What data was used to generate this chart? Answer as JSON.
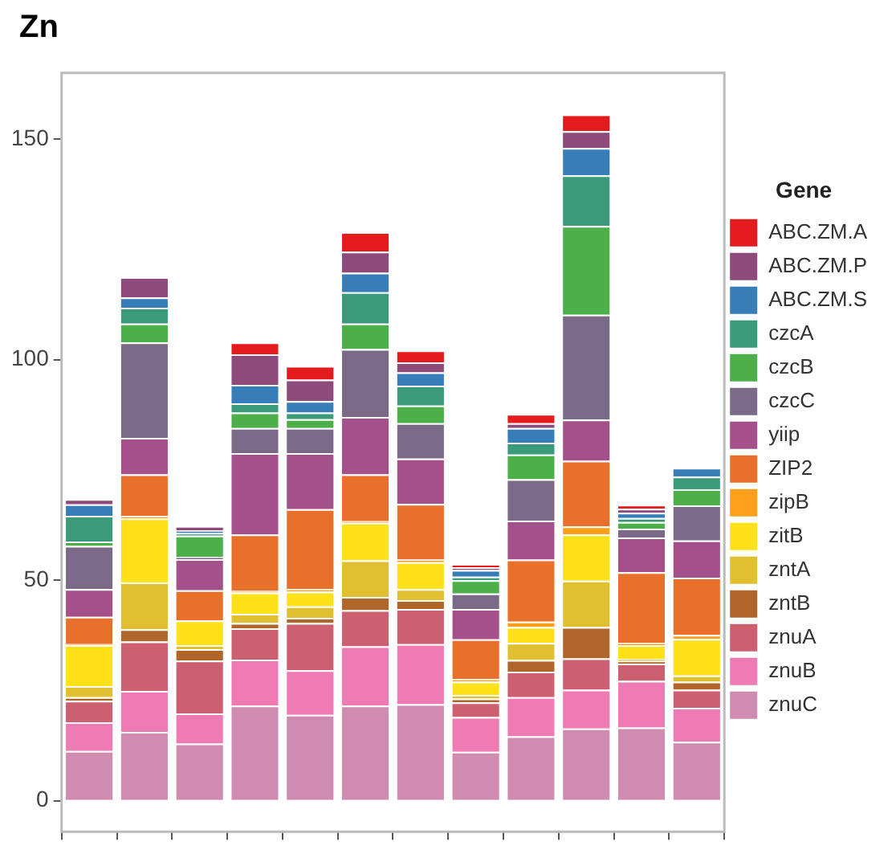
{
  "chart_data": {
    "type": "bar",
    "title": "Zn",
    "legend_title": "Gene",
    "stacked": true,
    "legend": "right",
    "grid": false,
    "tick_labels": "y",
    "categories": [
      null,
      null,
      null,
      null,
      null,
      null,
      null,
      null,
      null,
      null,
      null,
      null
    ],
    "ylim": [
      -7,
      165
    ],
    "yticks": [
      0,
      50,
      100,
      150
    ],
    "series": [
      {
        "name": "znuC",
        "color": "#d08cb0",
        "values": [
          11.3,
          15.6,
          13,
          21.6,
          19.5,
          21.6,
          21.9,
          11.1,
          14.6,
          16.4,
          16.6,
          13.4
        ]
      },
      {
        "name": "znuB",
        "color": "#f07ab4",
        "values": [
          6.5,
          9.3,
          6.8,
          10.4,
          10.1,
          13.4,
          13.6,
          7.9,
          8.9,
          8.8,
          10.6,
          7.7
        ]
      },
      {
        "name": "znuA",
        "color": "#cc6070",
        "values": [
          4.9,
          11.2,
          12,
          7.1,
          10.7,
          8.2,
          8,
          3.3,
          5.8,
          7.1,
          3.9,
          4.1
        ]
      },
      {
        "name": "zntB",
        "color": "#b0652a",
        "values": [
          0.8,
          2.8,
          2.6,
          1.2,
          1.2,
          3,
          2,
          0.9,
          2.6,
          7.1,
          0.6,
          1.8
        ]
      },
      {
        "name": "zntA",
        "color": "#e0c030",
        "values": [
          2.5,
          10.6,
          0.9,
          2.1,
          2.6,
          8.3,
          2.5,
          0.8,
          3.9,
          10.5,
          0.5,
          1.4
        ]
      },
      {
        "name": "zitB",
        "color": "#ffe119",
        "values": [
          9.3,
          14.5,
          5.6,
          4.8,
          3.3,
          8.5,
          6.1,
          3,
          3.6,
          10.5,
          3.1,
          8.3
        ]
      },
      {
        "name": "zipB",
        "color": "#ff9f1a",
        "values": [
          0.2,
          0.6,
          null,
          0.4,
          0.6,
          0.4,
          0.6,
          0.6,
          1.2,
          1.8,
          0.5,
          0.9
        ]
      },
      {
        "name": "ZIP2",
        "color": "#e8702a",
        "values": [
          6.2,
          9.4,
          6.8,
          12.8,
          18.1,
          10.6,
          12.6,
          9,
          14.1,
          14.9,
          16,
          13
        ]
      },
      {
        "name": "yiip",
        "color": "#a4508a",
        "values": [
          6.3,
          8.3,
          7.1,
          18.4,
          12.7,
          13,
          10.3,
          6.9,
          8.8,
          9.3,
          7.9,
          8.4
        ]
      },
      {
        "name": "czcC",
        "color": "#7a6a87",
        "values": [
          9.8,
          21.6,
          0.5,
          5.7,
          5.7,
          15.4,
          8,
          3.5,
          9.4,
          23.8,
          2,
          8
        ]
      },
      {
        "name": "czcB",
        "color": "#4daf4a",
        "values": [
          1,
          4.3,
          4.8,
          3.5,
          2,
          5.8,
          4,
          3,
          5.6,
          20.1,
          1.5,
          3.6
        ]
      },
      {
        "name": "czcA",
        "color": "#3a9a7a",
        "values": [
          5.8,
          3.6,
          0.6,
          2.1,
          1.5,
          7.1,
          4.5,
          0.8,
          2.7,
          11.5,
          0.9,
          2.9
        ]
      },
      {
        "name": "ABC.ZM.S",
        "color": "#377eb8",
        "values": [
          2.6,
          2.3,
          0.6,
          4.2,
          2.6,
          4.4,
          3,
          1.5,
          3.3,
          6.2,
          1.2,
          2
        ]
      },
      {
        "name": "ABC.ZM.P",
        "color": "#8e4a7a",
        "values": [
          1.2,
          4.6,
          1,
          6.9,
          4.9,
          4.8,
          2.3,
          0.6,
          1.1,
          3.8,
          0.9,
          0
        ]
      },
      {
        "name": "ABC.ZM.A",
        "color": "#e41a1c",
        "values": [
          0,
          0,
          0,
          2.7,
          3.1,
          4.4,
          2.7,
          0.8,
          2.1,
          3.8,
          0.9,
          0
        ]
      }
    ]
  }
}
